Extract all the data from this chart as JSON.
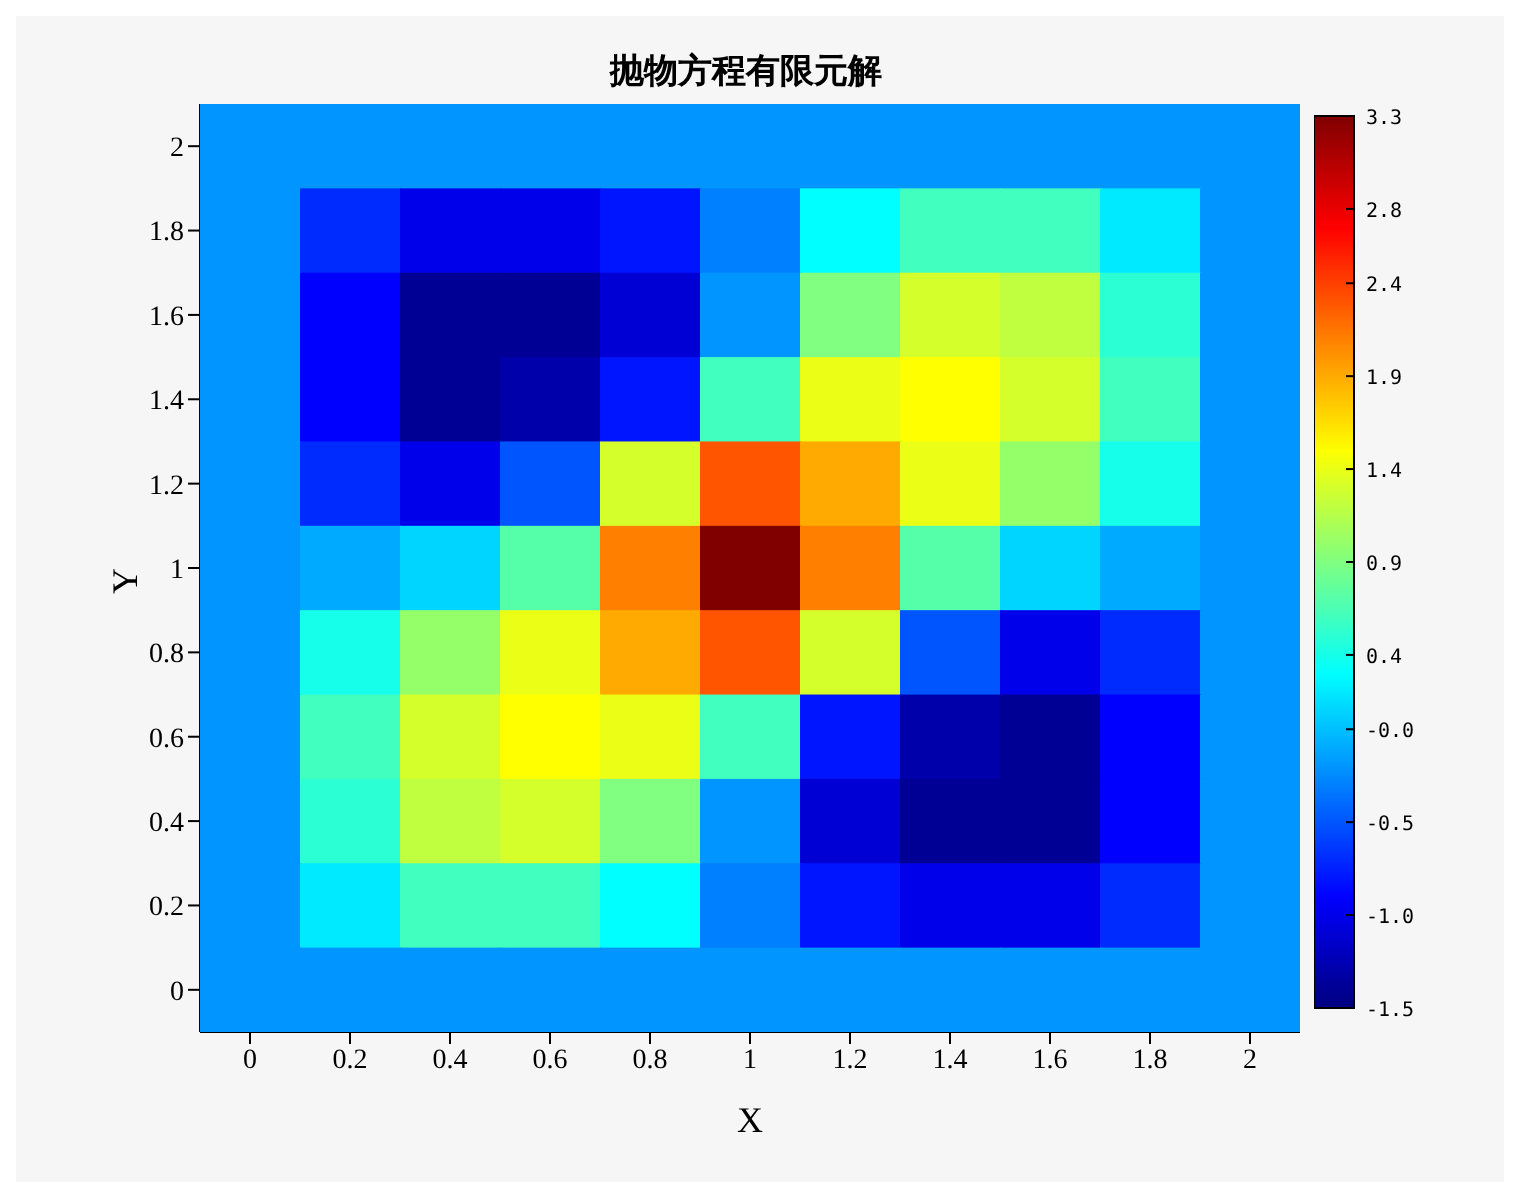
{
  "chart_data": {
    "type": "heatmap",
    "title": "抛物方程有限元解",
    "xlabel": "X",
    "ylabel": "Y",
    "categories": [
      "0",
      "0.2",
      "0.4",
      "0.6",
      "0.8",
      "1",
      "1.2",
      "1.4",
      "1.6",
      "1.8",
      "2"
    ],
    "y_categories": [
      "2",
      "1.8",
      "1.6",
      "1.4",
      "1.2",
      "1",
      "0.8",
      "0.6",
      "0.4",
      "0.2",
      "0"
    ],
    "clim": [
      -1.5,
      3.3
    ],
    "cticks": [
      -1.5,
      {
        "value": -1,
        "label": "-1.0"
      },
      -0.5,
      {
        "value": 0,
        "label": "-0.0"
      },
      0.4,
      0.9,
      1.4,
      1.9,
      2.4,
      2.8,
      3.3
    ],
    "cells": [
      [
        -0.2,
        -0.2,
        -0.2,
        -0.2,
        -0.2,
        -0.2,
        -0.2,
        -0.2,
        -0.2,
        -0.2,
        -0.2
      ],
      [
        -0.2,
        -0.7,
        -1.0,
        -1.0,
        -0.8,
        -0.3,
        0.3,
        0.6,
        0.6,
        0.2,
        -0.2
      ],
      [
        -0.2,
        -0.9,
        -1.4,
        -1.4,
        -1.1,
        -0.2,
        0.9,
        1.3,
        1.2,
        0.5,
        -0.2
      ],
      [
        -0.2,
        -0.9,
        -1.4,
        -1.3,
        -0.8,
        0.6,
        1.4,
        1.5,
        1.3,
        0.6,
        -0.2
      ],
      [
        -0.2,
        -0.7,
        -1.0,
        -0.5,
        1.3,
        2.3,
        1.9,
        1.4,
        1.0,
        0.4,
        -0.2
      ],
      [
        -0.2,
        -0.1,
        0.1,
        0.7,
        2.1,
        3.3,
        2.1,
        0.7,
        0.1,
        -0.1,
        -0.2
      ],
      [
        -0.2,
        0.4,
        1.0,
        1.4,
        1.9,
        2.3,
        1.3,
        -0.5,
        -1.0,
        -0.7,
        -0.2
      ],
      [
        -0.2,
        0.6,
        1.3,
        1.5,
        1.4,
        0.6,
        -0.8,
        -1.3,
        -1.4,
        -0.9,
        -0.2
      ],
      [
        -0.2,
        0.5,
        1.2,
        1.3,
        0.9,
        -0.2,
        -1.1,
        -1.4,
        -1.4,
        -0.9,
        -0.2
      ],
      [
        -0.2,
        0.2,
        0.6,
        0.6,
        0.3,
        -0.3,
        -0.8,
        -1.0,
        -1.0,
        -0.7,
        -0.2
      ],
      [
        -0.2,
        -0.2,
        -0.2,
        -0.2,
        -0.2,
        -0.2,
        -0.2,
        -0.2,
        -0.2,
        -0.2,
        -0.2
      ]
    ]
  }
}
